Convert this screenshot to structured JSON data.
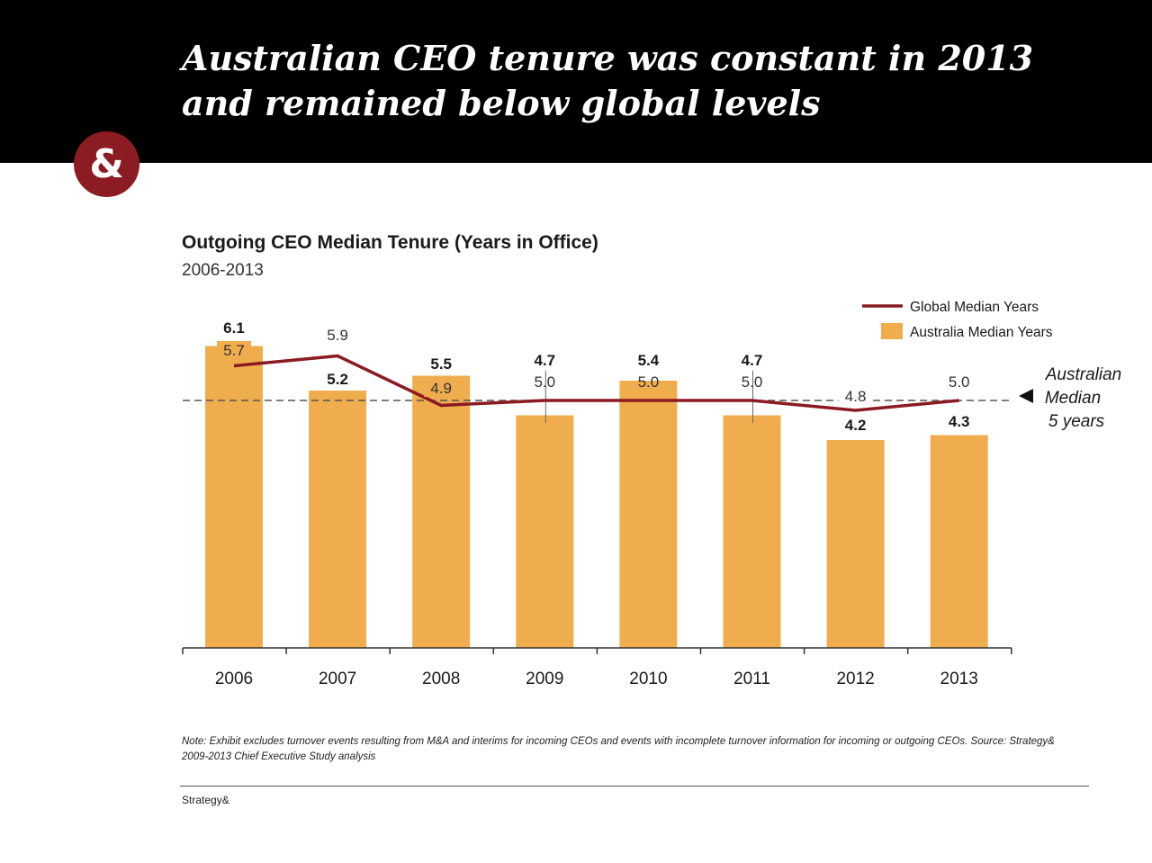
{
  "slide": {
    "headline_line1": "Australian CEO tenure was constant in 2013",
    "headline_line2": "and remained below global levels",
    "logo_text": "&",
    "note": "Note: Exhibit excludes turnover events resulting from M&A and interims for incoming CEOs and events with incomplete turnover information for incoming or outgoing CEOs. Source: Strategy& 2009-2013 Chief Executive Study analysis",
    "footer": "Strategy&"
  },
  "colors": {
    "bar": "#f0ad4e",
    "line": "#8b1a22",
    "header_bg": "#000000",
    "logo_bg": "#8c1c24"
  },
  "chart_data": {
    "type": "bar",
    "title": "Outgoing CEO Median Tenure (Years in Office)",
    "subtitle": "2006-2013",
    "categories": [
      "2006",
      "2007",
      "2008",
      "2009",
      "2010",
      "2011",
      "2012",
      "2013"
    ],
    "series": [
      {
        "name": "Australia Median Years",
        "type": "bar",
        "values": [
          6.1,
          5.2,
          5.5,
          4.7,
          5.4,
          4.7,
          4.2,
          4.3
        ],
        "labels": [
          "6.1",
          "5.2",
          "5.5",
          "4.7",
          "5.4",
          "4.7",
          "4.2",
          "4.3"
        ]
      },
      {
        "name": "Global Median Years",
        "type": "line",
        "values": [
          5.7,
          5.9,
          4.9,
          5.0,
          5.0,
          5.0,
          4.8,
          5.0
        ],
        "labels": [
          "5.7",
          "5.9",
          "4.9",
          "5.0",
          "5.0",
          "5.0",
          "4.8",
          "5.0"
        ]
      }
    ],
    "reference_line": {
      "value": 5,
      "style": "dashed",
      "label_lines": [
        "Australian",
        "Median",
        "5 years"
      ]
    },
    "ylim": [
      0,
      6.5
    ],
    "xlabel": "",
    "ylabel": "",
    "grid": false,
    "legend_position": "top-right"
  }
}
